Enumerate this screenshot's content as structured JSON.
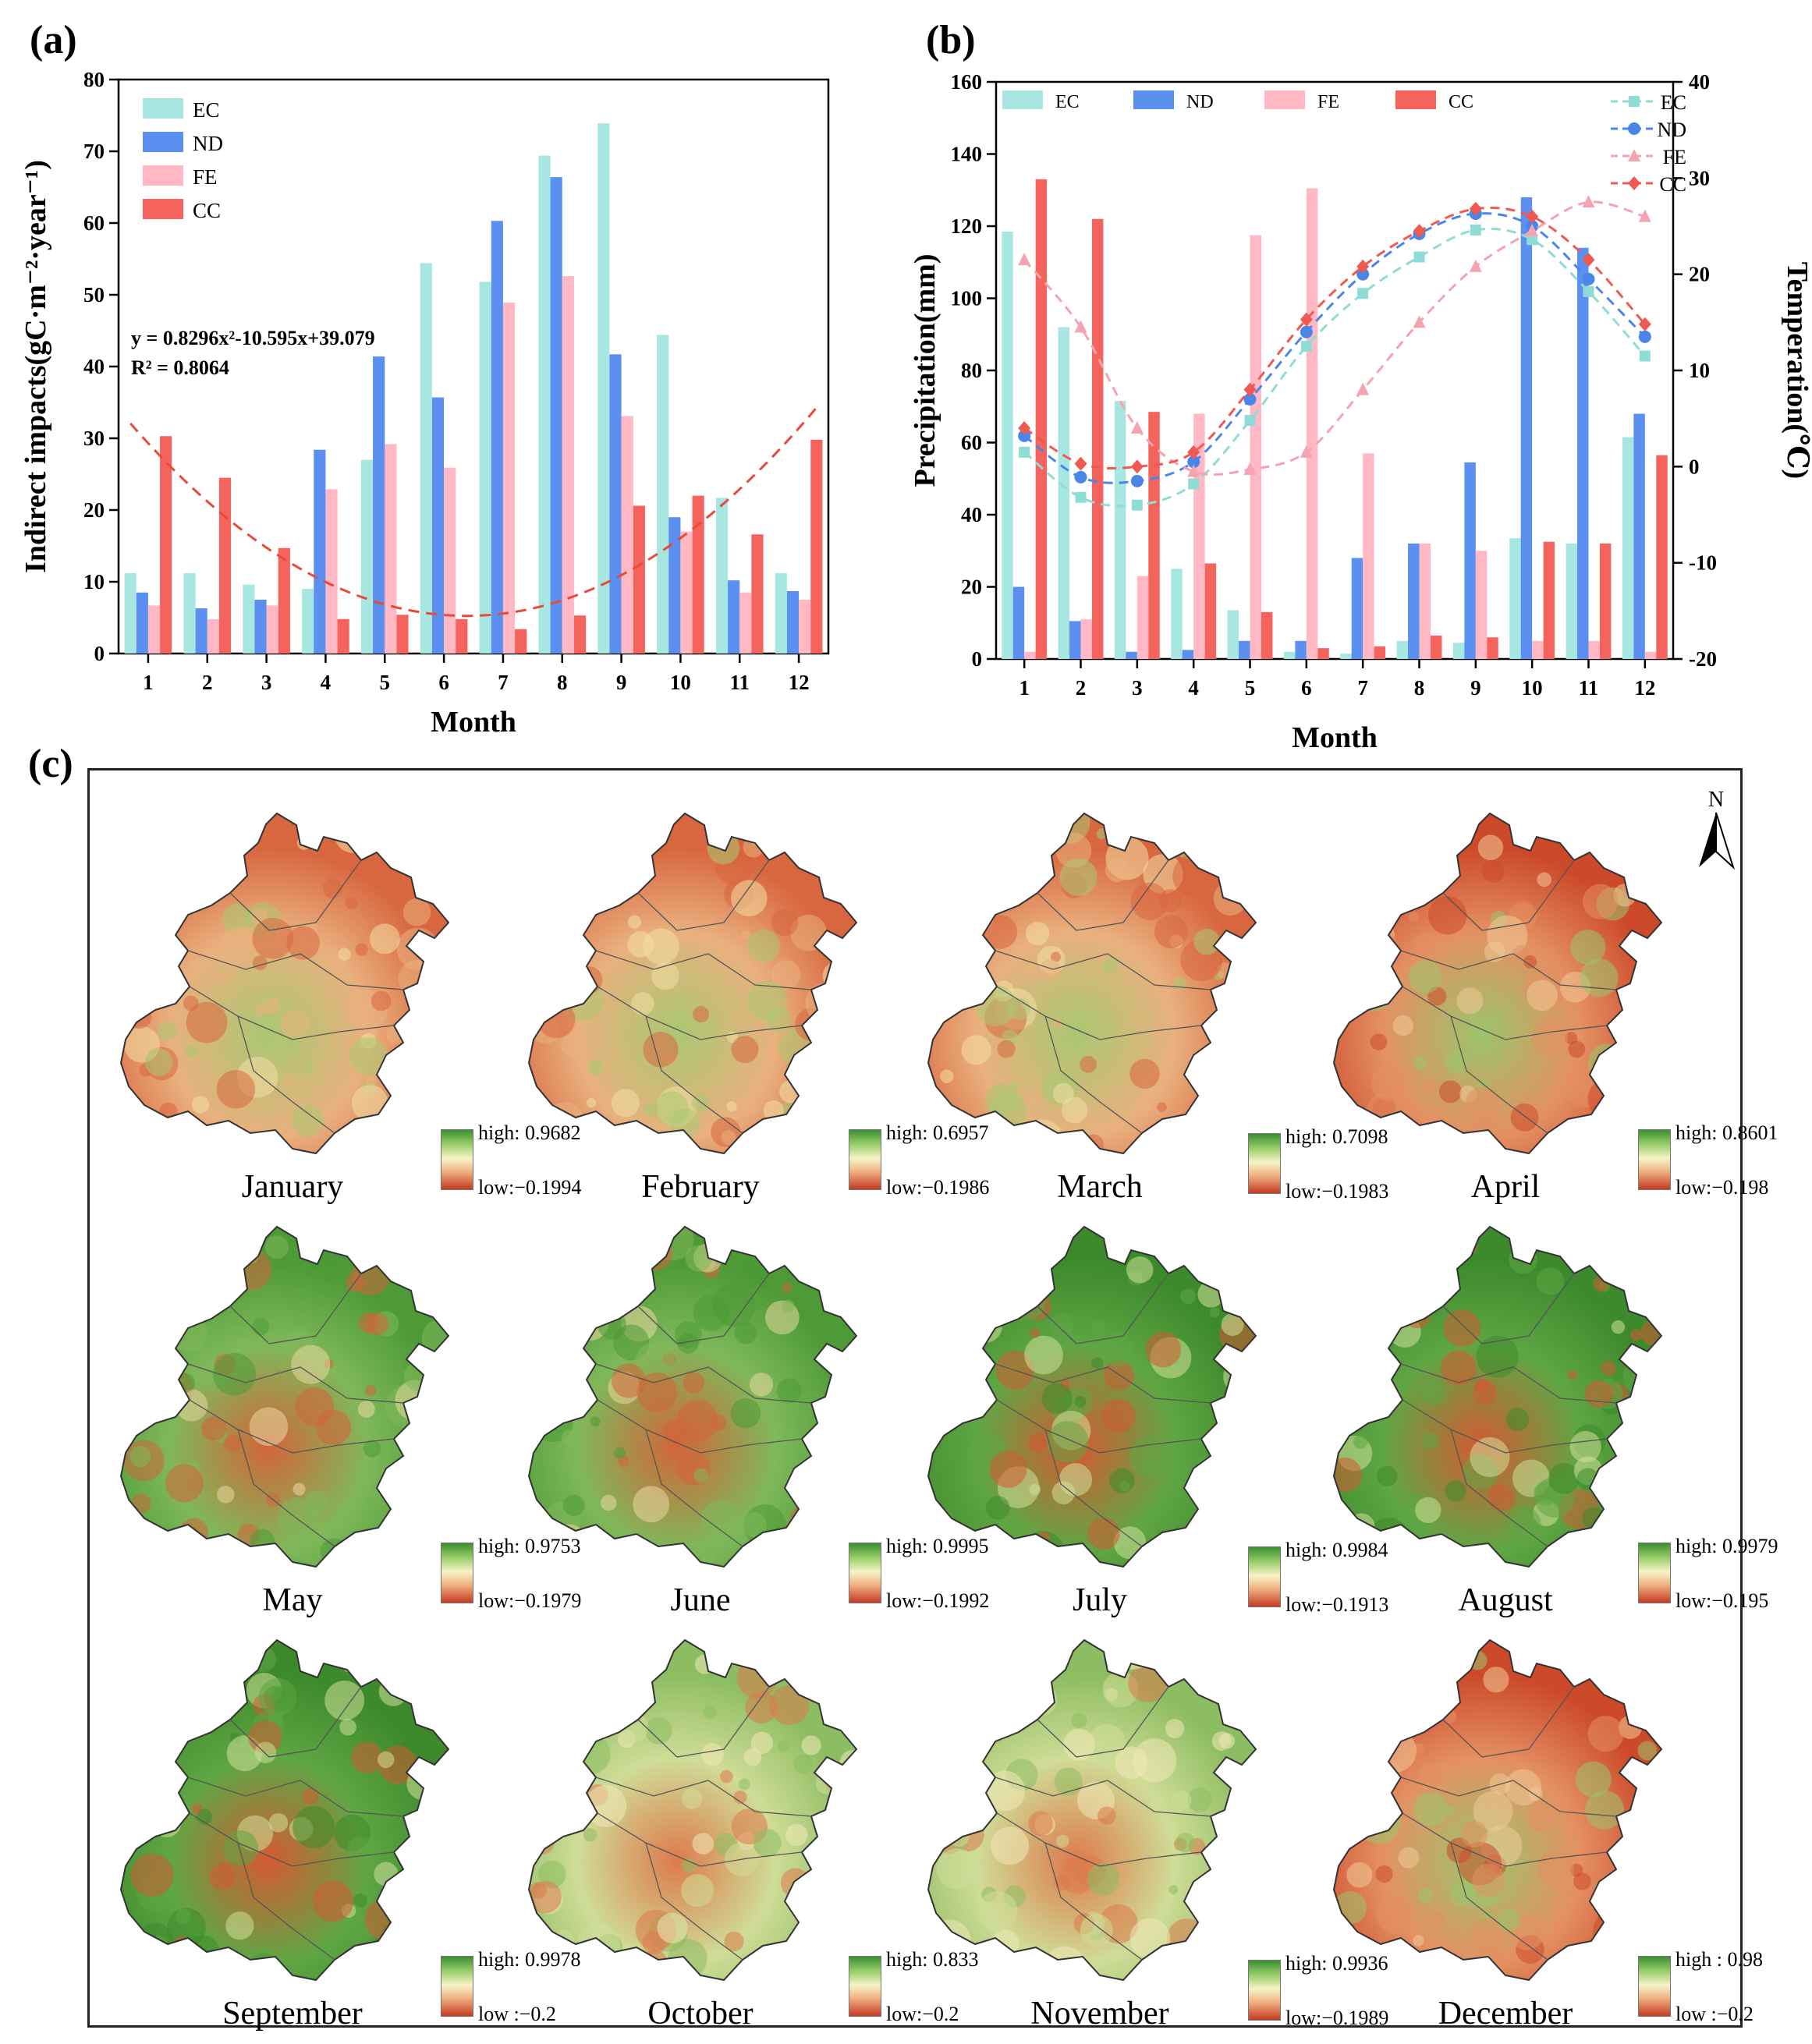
{
  "panels": {
    "a": "(a)",
    "b": "(b)",
    "c": "(c)"
  },
  "chart_data": [
    {
      "id": "a",
      "type": "bar",
      "ylabel": "Indirect impacts(gC·m⁻²·year⁻¹)",
      "xlabel": "Month",
      "categories": [
        "1",
        "2",
        "3",
        "4",
        "5",
        "6",
        "7",
        "8",
        "9",
        "10",
        "11",
        "12"
      ],
      "ylim": [
        0,
        80
      ],
      "yticks": [
        0,
        10,
        20,
        30,
        40,
        50,
        60,
        70,
        80
      ],
      "series": [
        {
          "name": "EC",
          "color": "#a8e6e2",
          "values": [
            11.2,
            11.2,
            9.6,
            9.0,
            27.0,
            54.4,
            51.8,
            69.4,
            73.9,
            44.4,
            21.7,
            11.2
          ]
        },
        {
          "name": "ND",
          "color": "#5b8ff0",
          "values": [
            8.5,
            6.3,
            7.5,
            28.4,
            41.4,
            35.7,
            60.3,
            66.4,
            41.7,
            19.0,
            10.2,
            8.7
          ]
        },
        {
          "name": "FE",
          "color": "#ffb8c4",
          "values": [
            6.7,
            4.8,
            6.7,
            22.9,
            29.2,
            25.9,
            48.9,
            52.6,
            33.1,
            17.0,
            8.5,
            7.5
          ]
        },
        {
          "name": "CC",
          "color": "#f4645c",
          "values": [
            30.3,
            24.5,
            14.7,
            4.8,
            5.4,
            4.8,
            3.4,
            5.3,
            20.6,
            22.0,
            16.6,
            29.8
          ]
        }
      ],
      "fit": {
        "a": 0.8296,
        "b": -10.595,
        "c": 39.079,
        "color": "#e84a3a"
      },
      "equation": "y = 0.8296x²-10.595x+39.079",
      "r2": "R² = 0.8064",
      "legend": "top-left"
    },
    {
      "id": "b",
      "type": "bar+line",
      "ylabel": "Precipitation(mm)",
      "y2label": "Temperation(℃)",
      "xlabel": "Month",
      "categories": [
        "1",
        "2",
        "3",
        "4",
        "5",
        "6",
        "7",
        "8",
        "9",
        "10",
        "11",
        "12"
      ],
      "ylim": [
        0,
        160
      ],
      "yticks": [
        0,
        20,
        40,
        60,
        80,
        100,
        120,
        140,
        160
      ],
      "y2lim": [
        -20,
        40
      ],
      "y2ticks": [
        -20,
        -10,
        0,
        10,
        20,
        30,
        40
      ],
      "bar_series": [
        {
          "name": "EC",
          "color": "#a8e6e2",
          "values": [
            118.5,
            92.0,
            71.5,
            25.0,
            13.5,
            2.0,
            1.5,
            5.0,
            4.5,
            33.5,
            32.0,
            61.5
          ]
        },
        {
          "name": "ND",
          "color": "#5b8ff0",
          "values": [
            20.0,
            10.5,
            2.0,
            2.5,
            5.0,
            5.0,
            28.0,
            32.0,
            54.5,
            128.0,
            114.0,
            68.0
          ]
        },
        {
          "name": "FE",
          "color": "#ffb8c4",
          "values": [
            2.0,
            11.0,
            23.0,
            68.0,
            117.5,
            130.5,
            57.0,
            32.0,
            30.0,
            5.0,
            5.0,
            2.0
          ]
        },
        {
          "name": "CC",
          "color": "#f4645c",
          "values": [
            133.0,
            122.0,
            68.5,
            26.5,
            13.0,
            3.0,
            3.5,
            6.5,
            6.0,
            32.5,
            32.0,
            56.5
          ]
        }
      ],
      "line_series": [
        {
          "name": "EC",
          "color": "#8fdcd6",
          "marker": "square",
          "values": [
            1.5,
            -3.2,
            -4.0,
            -1.8,
            4.8,
            12.5,
            18.0,
            21.8,
            24.6,
            23.6,
            18.2,
            11.5
          ]
        },
        {
          "name": "ND",
          "color": "#4a86e8",
          "marker": "circle",
          "values": [
            3.2,
            -1.1,
            -1.5,
            0.5,
            7.0,
            14.0,
            20.0,
            24.2,
            26.3,
            25.0,
            19.5,
            13.5
          ]
        },
        {
          "name": "FE",
          "color": "#f5a3b0",
          "marker": "triangle",
          "values": [
            21.5,
            14.5,
            4.0,
            -0.5,
            -0.3,
            1.5,
            8.0,
            15.0,
            20.8,
            24.5,
            27.5,
            26.0
          ]
        },
        {
          "name": "CC",
          "color": "#ee5a52",
          "marker": "diamond",
          "values": [
            4.0,
            0.3,
            0.0,
            1.5,
            8.0,
            15.3,
            20.8,
            24.5,
            26.8,
            26.0,
            21.5,
            14.8
          ]
        }
      ],
      "legend": "top"
    }
  ],
  "maps": {
    "title": "(c)",
    "north": "N",
    "items": [
      {
        "month": "January",
        "high": "high: 0.9682",
        "low": "low:−0.1994",
        "style": "warm"
      },
      {
        "month": "February",
        "high": "high: 0.6957",
        "low": "low:−0.1986",
        "style": "warm"
      },
      {
        "month": "March",
        "high": "high: 0.7098",
        "low": "low:−0.1983",
        "style": "warm"
      },
      {
        "month": "April",
        "high": "high: 0.8601",
        "low": "low:−0.198",
        "style": "warm2"
      },
      {
        "month": "May",
        "high": "high: 0.9753",
        "low": "low:−0.1979",
        "style": "green1"
      },
      {
        "month": "June",
        "high": "high: 0.9995",
        "low": "low:−0.1992",
        "style": "green1"
      },
      {
        "month": "July",
        "high": "high: 0.9984",
        "low": "low:−0.1913",
        "style": "green2"
      },
      {
        "month": "August",
        "high": "high: 0.9979",
        "low": "low:−0.195",
        "style": "green2"
      },
      {
        "month": "September",
        "high": "high: 0.9978",
        "low": "low :−0.2",
        "style": "green2"
      },
      {
        "month": "October",
        "high": "high: 0.833",
        "low": "low:−0.2",
        "style": "mixed"
      },
      {
        "month": "November",
        "high": "high: 0.9936",
        "low": "low:−0.1989",
        "style": "mixed"
      },
      {
        "month": "December",
        "high": "high : 0.98",
        "low": "low :−0.2",
        "style": "warm2"
      }
    ]
  }
}
